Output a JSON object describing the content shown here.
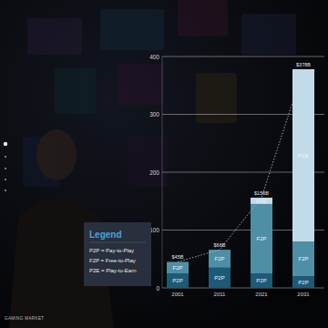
{
  "chart_data": {
    "type": "bar",
    "stacked": true,
    "data_labels": true,
    "grid": true,
    "legend": "bottom-left",
    "categories": [
      "2001",
      "2011",
      "2021",
      "2031"
    ],
    "series": [
      {
        "name": "P2P",
        "color": "#1d5a78",
        "values": [
          25,
          35,
          25,
          20
        ]
      },
      {
        "name": "F2P",
        "color": "#4f8fa6",
        "values": [
          20,
          31,
          120,
          60
        ]
      },
      {
        "name": "P2E",
        "color": "#c2dbe8",
        "values": [
          0,
          0,
          11,
          298
        ]
      }
    ],
    "totals": [
      45,
      66,
      156,
      378
    ],
    "total_labels": [
      "$45B",
      "$66B",
      "$156B",
      "$378B"
    ],
    "ylim": [
      0,
      400
    ],
    "yticks": [
      0,
      100,
      200,
      300,
      400
    ],
    "legend_title": "Legend",
    "legend_items": [
      "P2P = Pay-to-Play",
      "F2P = Free-to-Play",
      "P2E = Play-to-Earn"
    ],
    "footer": "GAMING MARKET"
  }
}
